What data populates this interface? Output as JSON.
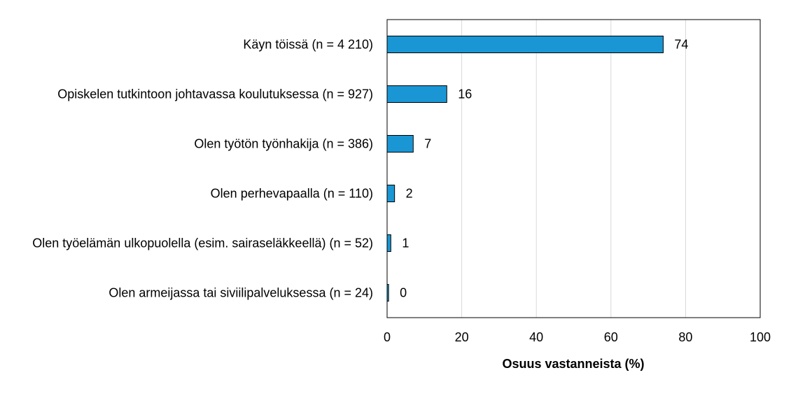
{
  "chart_data": {
    "type": "bar",
    "orientation": "horizontal",
    "title": "",
    "categories": [
      "Käyn töissä (n = 4 210)",
      "Opiskelen tutkintoon johtavassa koulutuksessa (n = 927)",
      "Olen työtön työnhakija (n = 386)",
      "Olen perhevapaalla (n = 110)",
      "Olen työelämän ulkopuolella (esim. sairaseläkkeellä) (n = 52)",
      "Olen armeijassa tai siviilipalveluksessa (n = 24)"
    ],
    "values": [
      74,
      16,
      7,
      2,
      1,
      0.4
    ],
    "value_labels": [
      "74",
      "16",
      "7",
      "2",
      "1",
      "0"
    ],
    "xlabel": "Osuus vastanneista (%)",
    "ylabel": "",
    "xlim": [
      0,
      100
    ],
    "xticks": [
      0,
      20,
      40,
      60,
      80,
      100
    ],
    "xtick_labels": [
      "0",
      "20",
      "40",
      "60",
      "80",
      "100"
    ],
    "grid": true,
    "colors": {
      "bar": "#1a96d4",
      "bar_border": "#000000",
      "grid": "#d9d9d9",
      "frame": "#000000"
    }
  }
}
